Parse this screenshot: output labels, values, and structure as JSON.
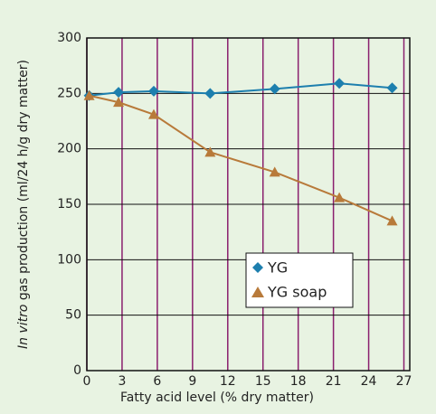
{
  "chart_data": {
    "type": "line",
    "x_label": "Fatty acid level (% dry matter)",
    "y_label_italic": "In vitro",
    "y_label": "gas production (ml/24 h/g dry matter)",
    "xlim": [
      0,
      27.5
    ],
    "xticks": [
      0,
      3,
      6,
      9,
      12,
      15,
      18,
      21,
      24,
      27
    ],
    "ylim": [
      0,
      300
    ],
    "yticks": [
      0,
      50,
      100,
      150,
      200,
      250,
      300
    ],
    "grid": true,
    "legend": "lower right",
    "series": [
      {
        "name": "YG",
        "color": "#1d7fae",
        "marker": "diamond",
        "x": [
          0.2,
          2.7,
          5.7,
          10.5,
          16,
          21.5,
          26
        ],
        "values": [
          248,
          251,
          252,
          250,
          254,
          259,
          255
        ]
      },
      {
        "name": "YG soap",
        "color": "#b87a3a",
        "marker": "triangle",
        "x": [
          0.2,
          2.7,
          5.7,
          10.5,
          16,
          21.5,
          26
        ],
        "values": [
          248,
          242,
          231,
          197,
          179,
          156,
          135
        ]
      }
    ]
  }
}
